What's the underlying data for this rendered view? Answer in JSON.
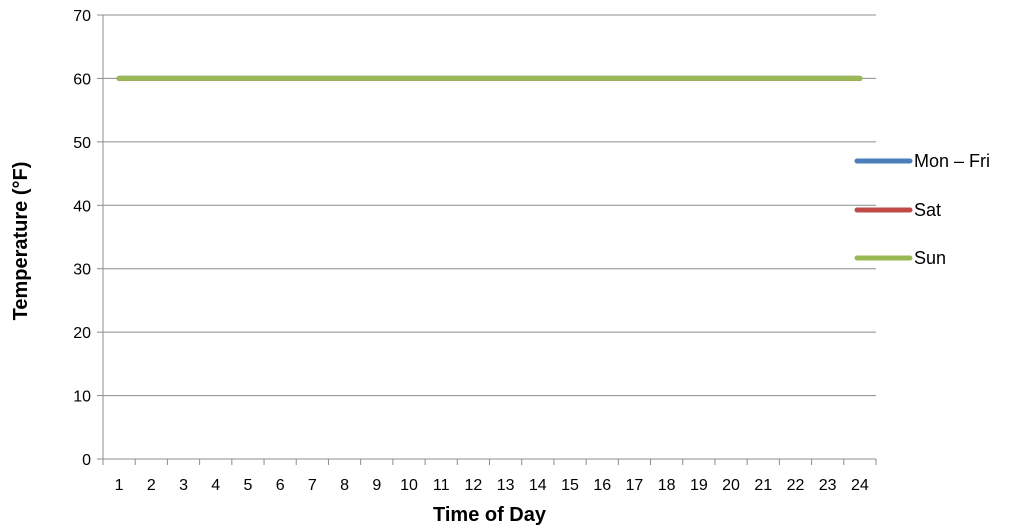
{
  "chart_data": {
    "type": "line",
    "xlabel": "Time of Day",
    "ylabel": "Temperature (°F)",
    "x": [
      "1",
      "2",
      "3",
      "4",
      "5",
      "6",
      "7",
      "8",
      "9",
      "10",
      "11",
      "12",
      "13",
      "14",
      "15",
      "16",
      "17",
      "18",
      "19",
      "20",
      "21",
      "22",
      "23",
      "24"
    ],
    "ylim": [
      0,
      70
    ],
    "yticks": [
      0,
      10,
      20,
      30,
      40,
      50,
      60,
      70
    ],
    "grid": true,
    "legend_position": "right",
    "series": [
      {
        "name": "Mon – Fri",
        "color": "#4a7ebb",
        "values": [
          60,
          60,
          60,
          60,
          60,
          60,
          60,
          60,
          60,
          60,
          60,
          60,
          60,
          60,
          60,
          60,
          60,
          60,
          60,
          60,
          60,
          60,
          60,
          60
        ]
      },
      {
        "name": "Sat",
        "color": "#be4b48",
        "values": [
          60,
          60,
          60,
          60,
          60,
          60,
          60,
          60,
          60,
          60,
          60,
          60,
          60,
          60,
          60,
          60,
          60,
          60,
          60,
          60,
          60,
          60,
          60,
          60
        ]
      },
      {
        "name": "Sun",
        "color": "#98b954",
        "values": [
          60,
          60,
          60,
          60,
          60,
          60,
          60,
          60,
          60,
          60,
          60,
          60,
          60,
          60,
          60,
          60,
          60,
          60,
          60,
          60,
          60,
          60,
          60,
          60
        ]
      }
    ]
  }
}
